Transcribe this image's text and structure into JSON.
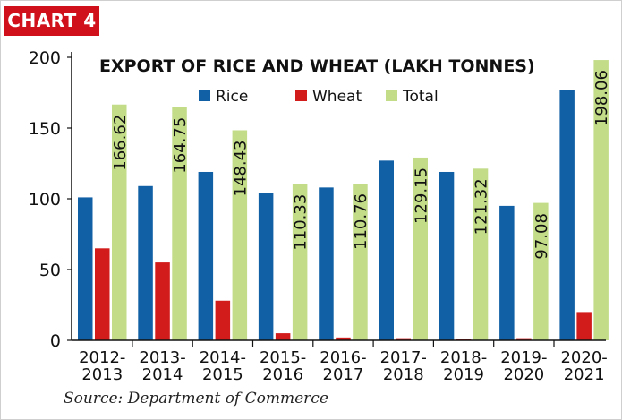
{
  "badge": "CHART 4",
  "source": "Source: Department of Commerce",
  "colors": {
    "Rice": "#1160a6",
    "Wheat": "#d21c1c",
    "Total": "#c2dc88",
    "badge": "#d0101a"
  },
  "chart_data": {
    "type": "bar",
    "title": "EXPORT OF RICE AND WHEAT (LAKH TONNES)",
    "xlabel": "",
    "ylabel": "",
    "ylim": [
      0,
      200
    ],
    "yticks": [
      0,
      50,
      100,
      150,
      200
    ],
    "grid": false,
    "legend": "top",
    "categories": [
      [
        "2012-",
        "2013"
      ],
      [
        "2013-",
        "2014"
      ],
      [
        "2014-",
        "2015"
      ],
      [
        "2015-",
        "2016"
      ],
      [
        "2016-",
        "2017"
      ],
      [
        "2017-",
        "2018"
      ],
      [
        "2018-",
        "2019"
      ],
      [
        "2019-",
        "2020"
      ],
      [
        "2020-",
        "2021"
      ]
    ],
    "series": [
      {
        "name": "Rice",
        "values": [
          101,
          109,
          119,
          104,
          108,
          127,
          119,
          95,
          177
        ]
      },
      {
        "name": "Wheat",
        "values": [
          65,
          55,
          28,
          5,
          2,
          1.5,
          1,
          1.5,
          20
        ]
      },
      {
        "name": "Total",
        "values": [
          166.62,
          164.75,
          148.43,
          110.33,
          110.76,
          129.15,
          121.32,
          97.08,
          198.06
        ]
      }
    ],
    "data_labels": [
      "166.62",
      "164.75",
      "148.43",
      "110.33",
      "110.76",
      "129.15",
      "121.32",
      "97.08",
      "198.06"
    ]
  }
}
